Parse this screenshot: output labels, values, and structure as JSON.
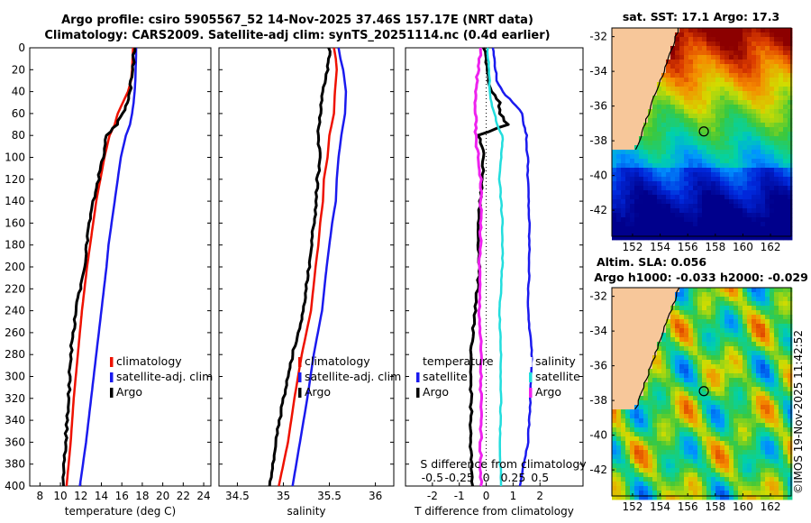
{
  "header": {
    "title_line1": "Argo profile: csiro 5905567_52 14-Nov-2025 37.46S 157.17E (NRT data)",
    "title_line2": "Climatology: CARS2009. Satellite-adj clim: synTS_20251114.nc (0.4d earlier)"
  },
  "copyright": "©IMOS 19-Nov-2025 11:42:52",
  "colors": {
    "climatology": "#ee1100",
    "satellite": "#1a1aee",
    "argo": "#000000",
    "cyan": "#22dddd",
    "magenta": "#ee22ee"
  },
  "chart_data": [
    {
      "id": "temperature",
      "type": "line",
      "xlabel": "temperature (deg C)",
      "ylabel": "",
      "xlim": [
        7,
        24.7
      ],
      "ylim": [
        400,
        0
      ],
      "xticks": [
        8,
        10,
        12,
        14,
        16,
        18,
        20,
        22,
        24
      ],
      "yticks": [
        0,
        20,
        40,
        60,
        80,
        100,
        120,
        140,
        160,
        180,
        200,
        220,
        240,
        260,
        280,
        300,
        320,
        340,
        360,
        380,
        400
      ],
      "legend": [
        "climatology",
        "satellite-adj. clim",
        "Argo"
      ],
      "legend_position": "lower-right",
      "depth": [
        0,
        10,
        20,
        30,
        40,
        50,
        60,
        70,
        80,
        100,
        120,
        140,
        160,
        180,
        200,
        240,
        280,
        320,
        360,
        400
      ],
      "series": [
        {
          "name": "climatology",
          "color": "#ee1100",
          "values": [
            17.1,
            17.05,
            17.0,
            16.9,
            16.6,
            16.1,
            15.6,
            15.3,
            14.8,
            14.3,
            13.9,
            13.5,
            13.2,
            12.9,
            12.6,
            12.1,
            11.7,
            11.3,
            11.0,
            10.6
          ]
        },
        {
          "name": "satellite-adj. clim",
          "color": "#1a1aee",
          "values": [
            17.4,
            17.38,
            17.35,
            17.32,
            17.25,
            17.15,
            17.0,
            16.8,
            16.4,
            15.9,
            15.6,
            15.3,
            15.0,
            14.7,
            14.5,
            14.0,
            13.5,
            13.0,
            12.5,
            11.9
          ]
        },
        {
          "name": "Argo",
          "color": "#000000",
          "values": [
            17.2,
            17.15,
            17.1,
            16.9,
            16.8,
            16.6,
            16.1,
            15.5,
            14.5,
            14.2,
            13.7,
            13.2,
            12.8,
            12.6,
            12.3,
            11.5,
            11.0,
            10.8,
            10.5,
            10.3
          ]
        }
      ]
    },
    {
      "id": "salinity",
      "type": "line",
      "xlabel": "salinity",
      "ylabel": "",
      "xlim": [
        34.3,
        36.2
      ],
      "ylim": [
        400,
        0
      ],
      "xticks": [
        34.5,
        35,
        35.5,
        36
      ],
      "legend": [
        "climatology",
        "satellite-adj. clim",
        "Argo"
      ],
      "legend_position": "lower-right",
      "depth": [
        0,
        10,
        20,
        40,
        60,
        80,
        100,
        120,
        140,
        160,
        180,
        200,
        240,
        280,
        320,
        360,
        400
      ],
      "series": [
        {
          "name": "climatology",
          "color": "#ee1100",
          "values": [
            35.55,
            35.57,
            35.58,
            35.56,
            35.55,
            35.5,
            35.48,
            35.44,
            35.43,
            35.4,
            35.38,
            35.35,
            35.3,
            35.2,
            35.12,
            35.05,
            34.95
          ]
        },
        {
          "name": "satellite-adj. clim",
          "color": "#1a1aee",
          "values": [
            35.6,
            35.62,
            35.65,
            35.68,
            35.67,
            35.63,
            35.6,
            35.58,
            35.57,
            35.53,
            35.5,
            35.47,
            35.42,
            35.33,
            35.26,
            35.18,
            35.1
          ]
        },
        {
          "name": "Argo",
          "color": "#000000",
          "values": [
            35.5,
            35.5,
            35.48,
            35.43,
            35.4,
            35.38,
            35.4,
            35.37,
            35.36,
            35.33,
            35.31,
            35.28,
            35.22,
            35.1,
            35.0,
            34.92,
            34.85
          ]
        }
      ]
    },
    {
      "id": "difference",
      "type": "line",
      "xlabel": "T difference from climatology",
      "xlabel_top": "S difference from climatology",
      "xlim": [
        -3,
        3.6
      ],
      "ylim": [
        400,
        0
      ],
      "xticks": [
        -2,
        -1,
        0,
        1,
        2
      ],
      "xticks_top_labels": [
        "-0.5",
        "-0.25",
        "0",
        "0.25",
        "0.5"
      ],
      "xticks_top_values": [
        -2,
        -1,
        0,
        1,
        2
      ],
      "legend_left": [
        "temperature",
        "satellite",
        "Argo"
      ],
      "legend_right": [
        "salinity",
        "satellite",
        "Argo"
      ],
      "depth": [
        0,
        10,
        20,
        30,
        40,
        50,
        60,
        70,
        80,
        90,
        100,
        120,
        160,
        200,
        240,
        280,
        320,
        360,
        400
      ],
      "series": [
        {
          "name": "T satellite",
          "color": "#1a1aee",
          "values": [
            0.25,
            0.3,
            0.35,
            0.4,
            0.6,
            1.0,
            1.35,
            1.4,
            1.5,
            1.5,
            1.55,
            1.55,
            1.6,
            1.6,
            1.55,
            1.7,
            1.65,
            1.55,
            1.25
          ]
        },
        {
          "name": "T Argo",
          "color": "#000000",
          "values": [
            -0.1,
            0.0,
            0.05,
            0.1,
            0.2,
            0.5,
            0.5,
            0.8,
            -0.3,
            -0.15,
            -0.1,
            -0.15,
            -0.3,
            -0.25,
            -0.4,
            -0.6,
            -0.55,
            -0.6,
            -0.5
          ]
        },
        {
          "name": "S satellite",
          "color": "#22dddd",
          "values": [
            0.05,
            0.08,
            0.1,
            0.12,
            0.15,
            0.18,
            0.3,
            0.4,
            0.6,
            0.6,
            0.55,
            0.5,
            0.6,
            0.6,
            0.5,
            0.55,
            0.55,
            0.5,
            0.55
          ]
        },
        {
          "name": "S Argo",
          "color": "#ee22ee",
          "values": [
            -0.2,
            -0.25,
            -0.3,
            -0.35,
            -0.4,
            -0.4,
            -0.4,
            -0.4,
            -0.4,
            -0.35,
            -0.3,
            -0.2,
            -0.2,
            -0.25,
            -0.25,
            -0.2,
            -0.2,
            -0.2,
            -0.2
          ]
        }
      ]
    },
    {
      "id": "sst-map",
      "type": "heatmap",
      "title": "sat. SST: 17.1 Argo: 17.3",
      "xticks": [
        152,
        154,
        156,
        158,
        160,
        162
      ],
      "yticks": [
        -32,
        -34,
        -36,
        -38,
        -40,
        -42
      ],
      "xlim": [
        150.5,
        163.5
      ],
      "ylim": [
        -43.5,
        -31.5
      ],
      "argo_position": [
        157.17,
        -37.46
      ]
    },
    {
      "id": "sla-map",
      "type": "heatmap",
      "title_line1": "Altim. SLA: 0.056",
      "title_line2": "Argo h1000: -0.033 h2000: -0.029",
      "xticks": [
        152,
        154,
        156,
        158,
        160,
        162
      ],
      "yticks": [
        -32,
        -34,
        -36,
        -38,
        -40,
        -42
      ],
      "xlim": [
        150.5,
        163.5
      ],
      "ylim": [
        -43.5,
        -31.5
      ],
      "argo_position": [
        157.17,
        -37.46
      ]
    }
  ]
}
